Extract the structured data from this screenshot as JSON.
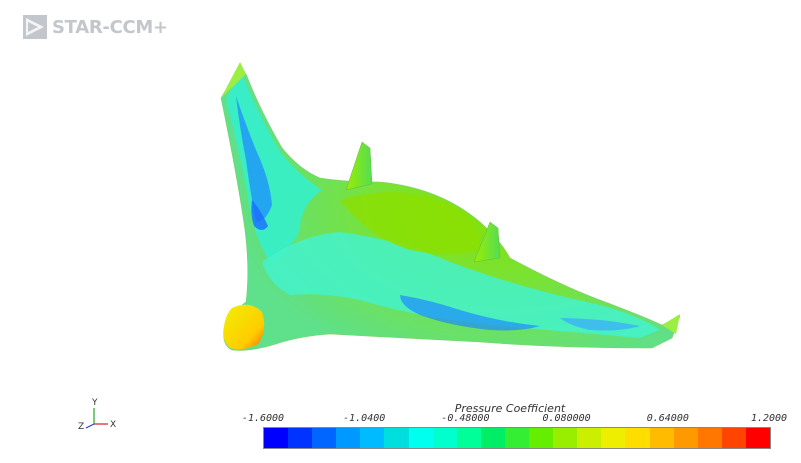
{
  "app": {
    "logo_text": "STAR-CCM+"
  },
  "triad": {
    "y_label": "Y",
    "z_label": "Z",
    "x_label": "X"
  },
  "legend": {
    "title": "Pressure Coefficient",
    "min": -1.6,
    "max": 1.2,
    "tick_labels": [
      "-1.6000",
      "-1.0400",
      "-0.48000",
      "0.080000",
      "0.64000",
      "1.2000"
    ],
    "colors": [
      "#0000ff",
      "#0033ff",
      "#0066ff",
      "#0099ff",
      "#00bbff",
      "#00dddd",
      "#00ffee",
      "#00ffcc",
      "#00ff99",
      "#00ee66",
      "#33ee33",
      "#66ee00",
      "#99ee00",
      "#ccee00",
      "#eeee00",
      "#ffdd00",
      "#ffbb00",
      "#ff9900",
      "#ff7700",
      "#ff4400",
      "#ff0000"
    ]
  }
}
